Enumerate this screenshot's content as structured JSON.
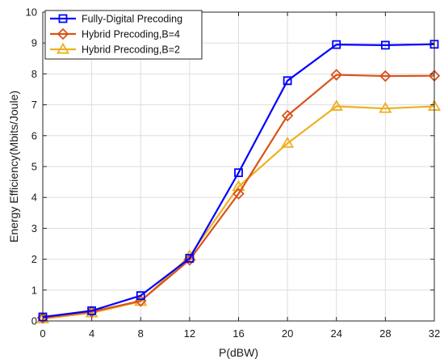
{
  "chart_data": {
    "type": "line",
    "title": "",
    "xlabel": "P(dBW)",
    "ylabel": "Energy Efficiency(Mbits/Joule)",
    "x": [
      0,
      4,
      8,
      12,
      16,
      20,
      24,
      28,
      32
    ],
    "xlim": [
      0,
      32
    ],
    "ylim": [
      0,
      10
    ],
    "xticks": [
      "0",
      "4",
      "8",
      "12",
      "16",
      "20",
      "24",
      "28",
      "32"
    ],
    "yticks": [
      "0",
      "1",
      "2",
      "3",
      "4",
      "5",
      "6",
      "7",
      "8",
      "9",
      "10"
    ],
    "grid": true,
    "legend_position": "top-left",
    "series": [
      {
        "name": "Fully-Digital Precoding",
        "color": "#0000ff",
        "marker": "square",
        "values": [
          0.13,
          0.33,
          0.82,
          2.03,
          4.8,
          7.78,
          8.95,
          8.93,
          8.96
        ]
      },
      {
        "name": "Hybrid Precoding,B=4",
        "color": "#d95319",
        "marker": "diamond",
        "values": [
          0.1,
          0.3,
          0.65,
          1.98,
          4.12,
          6.65,
          7.97,
          7.93,
          7.94
        ]
      },
      {
        "name": "Hybrid Precoding,B=2",
        "color": "#edb120",
        "marker": "triangle",
        "values": [
          0.07,
          0.26,
          0.63,
          2.1,
          4.35,
          5.75,
          6.95,
          6.88,
          6.95
        ]
      }
    ]
  }
}
